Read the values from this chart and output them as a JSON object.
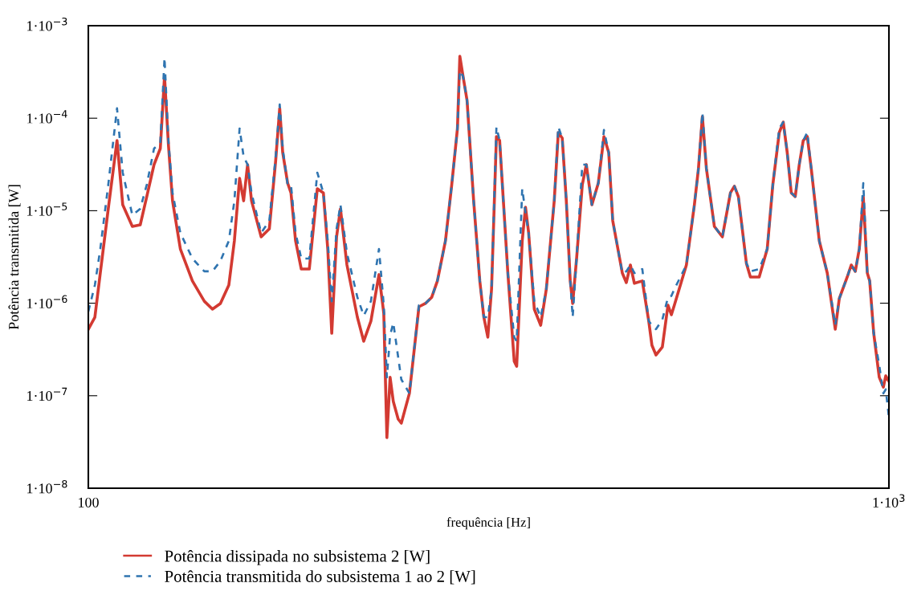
{
  "chart_data": {
    "type": "line",
    "xlabel": "frequência [Hz]",
    "ylabel": "Potência transmitida [W]",
    "log": "xy",
    "grid": false,
    "legend": "bottom",
    "marker": "none",
    "xlim": [
      100,
      1000
    ],
    "xticks": [
      {
        "value": 100,
        "label": "100"
      },
      {
        "value": 1000,
        "label": "1·10$^{3}$"
      }
    ],
    "ylim": [
      1e-08,
      0.001
    ],
    "yticks": [
      {
        "value": 1e-08,
        "label": "1·10$^{−8}$"
      },
      {
        "value": 1e-07,
        "label": "1·10$^{−7}$"
      },
      {
        "value": 1e-06,
        "label": "1·10$^{−6}$"
      },
      {
        "value": 1e-05,
        "label": "1·10$^{−5}$"
      },
      {
        "value": 0.0001,
        "label": "1·10$^{−4}$"
      },
      {
        "value": 0.001,
        "label": "1·10$^{−3}$"
      }
    ],
    "x": [
      100,
      101.9,
      103.5,
      105.9,
      108.6,
      110.4,
      113.5,
      116.1,
      118.3,
      120.8,
      123.0,
      124.5,
      125.9,
      127.4,
      130.3,
      134.9,
      139.6,
      142.9,
      146.2,
      149.8,
      152.2,
      154.5,
      156.3,
      158.1,
      159.9,
      164.4,
      168.3,
      171.4,
      173.4,
      174.9,
      177.4,
      179.1,
      181.5,
      184.5,
      188.8,
      193.2,
      196.6,
      199.1,
      201.4,
      204.2,
      206.5,
      210.4,
      216.8,
      220.8,
      225.4,
      230.7,
      233.9,
      236.0,
      238.2,
      240.4,
      243.8,
      246.0,
      251.8,
      258.8,
      263.6,
      268.5,
      272.9,
      279.3,
      284.4,
      289.1,
      291.1,
      293.8,
      297.2,
      302.9,
      308.3,
      311.9,
      315.5,
      318.9,
      323.4,
      326.4,
      334.2,
      340.4,
      342.8,
      348.3,
      351.6,
      354.8,
      360.6,
      367.3,
      373.3,
      381.9,
      386.4,
      390.8,
      395.4,
      399.9,
      402.7,
      407.4,
      414.0,
      418.8,
      425.6,
      433.5,
      440.6,
      446.7,
      451.9,
      464.5,
      469.9,
      475.4,
      480.9,
      492.0,
      501.2,
      505.8,
      511.7,
      521.2,
      529.7,
      534.9,
      539.5,
      558.5,
      571.5,
      578.2,
      584.8,
      591.6,
      605.3,
      619.4,
      633.9,
      641.2,
      648.6,
      663.7,
      671.4,
      688.6,
      704.7,
      716.1,
      729.5,
      737.9,
      746.4,
      755.1,
      763.8,
      772.7,
      781.6,
      790.7,
      799.8,
      818.5,
      837.5,
      857.0,
      866.9,
      887.0,
      897.3,
      907.8,
      918.3,
      928.9,
      939.7,
      946.2,
      957.2,
      972.6,
      984.1,
      990.9,
      1000
    ],
    "series": [
      {
        "name": "Potência dissipada no subsistema 2 [W]",
        "color": "#d33a32",
        "line_style": "solid",
        "values": [
          5.24e-07,
          7.06e-07,
          2.12e-06,
          1.05e-05,
          5.74e-05,
          1.16e-05,
          6.76e-06,
          7.03e-06,
          1.42e-05,
          3.15e-05,
          4.7e-05,
          0.000284,
          5.19e-05,
          1.28e-05,
          3.86e-06,
          1.74e-06,
          1.05e-06,
          8.63e-07,
          9.93e-07,
          1.57e-06,
          4.72e-06,
          2.24e-05,
          1.28e-05,
          3.15e-05,
          1.28e-05,
          5.21e-06,
          6.37e-06,
          3.48e-05,
          0.000128,
          4.25e-05,
          1.99e-05,
          1.56e-05,
          4.72e-06,
          2.34e-06,
          2.34e-06,
          1.73e-05,
          1.56e-05,
          3.86e-06,
          4.73e-07,
          5.21e-06,
          1.05e-05,
          2.59e-06,
          7.06e-07,
          3.88e-07,
          6.4e-07,
          2.04e-06,
          7.8e-07,
          3.52e-08,
          1.58e-07,
          8.66e-08,
          5.58e-08,
          5.05e-08,
          1.06e-07,
          9.16e-07,
          9.93e-07,
          1.16e-06,
          1.74e-06,
          4.72e-06,
          1.91e-05,
          7.74e-05,
          0.000468,
          0.000284,
          0.000156,
          1.28e-05,
          1.74e-06,
          7.06e-07,
          4.29e-07,
          1.42e-06,
          6.34e-05,
          5.74e-05,
          2.12e-06,
          2.35e-07,
          2.08e-07,
          4.72e-06,
          1.09e-05,
          5.75e-06,
          8.63e-07,
          5.78e-07,
          1.42e-06,
          1.28e-05,
          7e-05,
          6.09e-05,
          1.28e-05,
          1.74e-06,
          9.93e-07,
          3.16e-06,
          1.91e-05,
          3.15e-05,
          1.16e-05,
          1.99e-05,
          6.34e-05,
          4.25e-05,
          7.78e-06,
          2.12e-06,
          1.67e-06,
          2.59e-06,
          1.64e-06,
          1.74e-06,
          6.4e-07,
          3.51e-07,
          2.76e-07,
          3.37e-07,
          9.53e-07,
          7.5e-07,
          9.53e-07,
          2.59e-06,
          1.16e-05,
          2.85e-05,
          0.000104,
          2.85e-05,
          6.76e-06,
          5.21e-06,
          1.56e-05,
          1.84e-05,
          1.42e-05,
          2.7e-06,
          1.92e-06,
          1.92e-06,
          3.86e-06,
          1.91e-05,
          7e-05,
          9.08e-05,
          4.25e-05,
          1.56e-05,
          1.42e-05,
          3.15e-05,
          5.74e-05,
          6.34e-05,
          2.85e-05,
          4.72e-06,
          2.12e-06,
          5.24e-07,
          1.12e-06,
          1.92e-06,
          2.59e-06,
          2.21e-06,
          3.86e-06,
          1.42e-05,
          2.12e-06,
          1.74e-06,
          4.73e-07,
          1.58e-07,
          1.24e-07,
          1.64e-07,
          1.43e-07
        ]
      },
      {
        "name": "Potência transmitida do subsistema 1 ao 2 [W]",
        "color": "#2f74b0",
        "line_style": "dashed",
        "values": [
          8.13e-07,
          1.57e-06,
          3.86e-06,
          1.91e-05,
          0.000128,
          2.58e-05,
          8.94e-06,
          1.05e-05,
          1.91e-05,
          4.7e-05,
          5.41e-05,
          0.00045,
          5.74e-05,
          1.56e-05,
          5.75e-06,
          3.04e-06,
          2.21e-06,
          2.21e-06,
          2.86e-06,
          4.72e-06,
          1.28e-05,
          7.74e-05,
          3.85e-05,
          3.15e-05,
          1.56e-05,
          5.75e-06,
          7.78e-06,
          3.85e-05,
          0.000141,
          4.7e-05,
          1.91e-05,
          1.91e-05,
          5.75e-06,
          3.04e-06,
          3.04e-06,
          2.58e-05,
          1.56e-05,
          4.72e-06,
          1.05e-06,
          6.37e-06,
          1.16e-05,
          3.49e-06,
          1.16e-06,
          7.35e-07,
          1.05e-06,
          3.86e-06,
          9.53e-07,
          1.58e-07,
          4.5e-07,
          6.14e-07,
          2.6e-07,
          1.5e-07,
          1.06e-07,
          9.53e-07,
          9.93e-07,
          1.16e-06,
          1.74e-06,
          4.72e-06,
          1.91e-05,
          7.74e-05,
          0.000326,
          0.000284,
          0.000156,
          1.28e-05,
          1.74e-06,
          7.06e-07,
          7.06e-07,
          1.42e-06,
          8.05e-05,
          5.74e-05,
          2.12e-06,
          4.29e-07,
          3.88e-07,
          1.73e-05,
          9.49e-06,
          5.75e-06,
          1.05e-06,
          7.06e-07,
          1.42e-06,
          1.28e-05,
          8.05e-05,
          6.09e-05,
          1.28e-05,
          1.74e-06,
          7.06e-07,
          3.16e-06,
          3.15e-05,
          3.15e-05,
          1.16e-05,
          1.99e-05,
          7.45e-05,
          4.25e-05,
          7.78e-06,
          2.12e-06,
          2.21e-06,
          2.59e-06,
          2.12e-06,
          2.34e-06,
          6.4e-07,
          5.78e-07,
          5.24e-07,
          6.65e-07,
          1.16e-06,
          1.2e-06,
          1.42e-06,
          2.59e-06,
          1.16e-05,
          2.85e-05,
          0.000115,
          2.85e-05,
          6.76e-06,
          5.21e-06,
          1.56e-05,
          1.84e-05,
          1.42e-05,
          2.7e-06,
          2.21e-06,
          2.34e-06,
          3.86e-06,
          1.91e-05,
          7.74e-05,
          9.08e-05,
          4.25e-05,
          1.56e-05,
          1.42e-05,
          3.15e-05,
          5.74e-05,
          7e-05,
          2.85e-05,
          4.72e-06,
          2.12e-06,
          5.78e-07,
          1.12e-06,
          1.92e-06,
          2.59e-06,
          2.21e-06,
          3.86e-06,
          1.99e-05,
          2.12e-06,
          1.74e-06,
          4.73e-07,
          2.13e-07,
          1.06e-07,
          1.17e-07,
          5.81e-08
        ]
      }
    ]
  }
}
